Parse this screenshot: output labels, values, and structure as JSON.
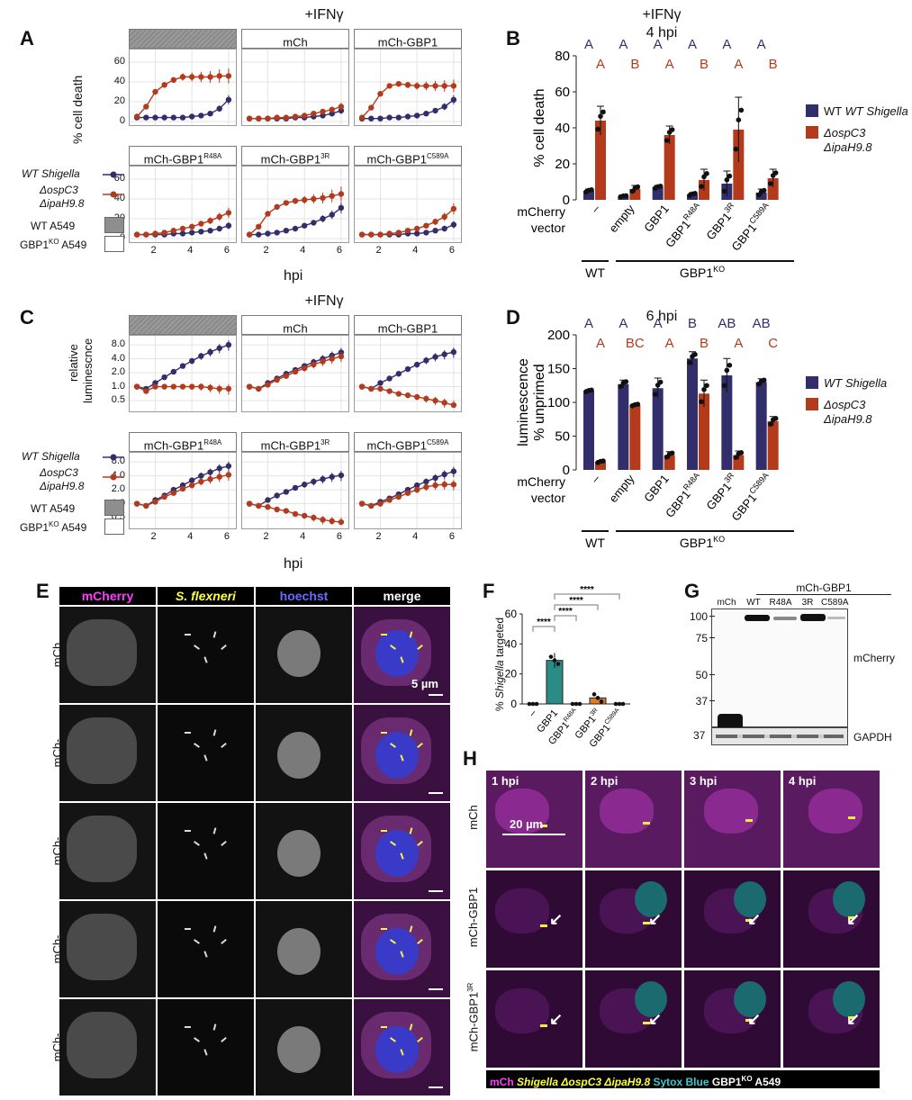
{
  "panels": {
    "A": "A",
    "B": "B",
    "C": "C",
    "D": "D",
    "E": "E",
    "F": "F",
    "G": "G",
    "H": "H"
  },
  "colors": {
    "wt": "#312e6b",
    "mut": "#b43a1c",
    "teal": "#2a8c84",
    "orange": "#e07a28"
  },
  "panelA": {
    "title": "+IFNγ",
    "facets": [
      "",
      "mCh",
      "mCh-GBP1",
      "mCh-GBP1R48A",
      "mCh-GBP13R",
      "mCh-GBP1C589A"
    ],
    "facet_main": [
      "",
      "mCh",
      "mCh-GBP1",
      "mCh-GBP1",
      "mCh-GBP1",
      "mCh-GBP1"
    ],
    "facet_sup": [
      "",
      "",
      "",
      "R48A",
      "3R",
      "C589A"
    ],
    "ylabel": "% cell death",
    "xlabel": "hpi",
    "yticks": [
      "0",
      "20",
      "40",
      "60"
    ],
    "xticks": [
      "2",
      "4",
      "6"
    ],
    "legend": {
      "wt": "WT Shigella",
      "mut1": "ΔospC3",
      "mut2": "ΔipaH9.8",
      "wtA549": "WT A549",
      "koA549_main": "GBP1",
      "koA549_sup": "KO",
      "koA549_rest": " A549"
    }
  },
  "panelC": {
    "title": "+IFNγ",
    "ylabel1": "relative",
    "ylabel2": "luminescnce",
    "xlabel": "hpi",
    "yticks": [
      "8.0",
      "4.0",
      "2.0",
      "1.0",
      "0.5"
    ],
    "xticks": [
      "2",
      "4",
      "6"
    ]
  },
  "panelB": {
    "title": "+IFNγ",
    "subtitle": "4 hpi",
    "ylabel": "% cell death",
    "yticks": [
      "0",
      "20",
      "40",
      "60",
      "80"
    ],
    "categories": [
      "–",
      "empty",
      "GBP1",
      "GBP1R48A",
      "GBP13R",
      "GBP1C589A"
    ],
    "cat_main": [
      "–",
      "empty",
      "GBP1",
      "GBP1",
      "GBP1",
      "GBP1"
    ],
    "cat_sup": [
      "",
      "",
      "",
      "R48A",
      "3R",
      "C589A"
    ],
    "letters_wt": [
      "A",
      "A",
      "A",
      "A",
      "A",
      "A"
    ],
    "letters_mut": [
      "A",
      "B",
      "A",
      "B",
      "A",
      "B"
    ],
    "row_label1": "mCherry",
    "row_label2": "vector",
    "group_wt": "WT",
    "group_ko_main": "GBP1",
    "group_ko_sup": "KO",
    "legend_wt": "WT Shigella",
    "legend_mut1": "ΔospC3",
    "legend_mut2": "ΔipaH9.8"
  },
  "panelD": {
    "title": "6 hpi",
    "ylabel1": "luminescence",
    "ylabel2": "% unprimed",
    "yticks": [
      "0",
      "50",
      "100",
      "150",
      "200"
    ],
    "letters_wt": [
      "A",
      "A",
      "A",
      "B",
      "AB",
      "AB"
    ],
    "letters_mut": [
      "A",
      "BC",
      "A",
      "B",
      "A",
      "C"
    ],
    "legend_wt": "WT Shigella",
    "legend_mut1": "ΔospC3",
    "legend_mut2": "ΔipaH9.8"
  },
  "chart_data": [
    {
      "type": "line",
      "panel": "A",
      "x": [
        1,
        1.5,
        2,
        2.5,
        3,
        3.5,
        4,
        4.5,
        5,
        5.5,
        6
      ],
      "ylim": [
        0,
        70
      ],
      "facets": [
        {
          "name": "WT A549",
          "series": [
            {
              "name": "WT Shigella",
              "values": [
                4,
                4,
                4,
                4,
                4,
                4,
                5,
                6,
                8,
                13,
                22
              ]
            },
            {
              "name": "ΔospC3 ΔipaH9.8",
              "values": [
                5,
                15,
                30,
                37,
                42,
                45,
                45,
                45,
                45,
                46,
                46
              ]
            }
          ]
        },
        {
          "name": "mCh",
          "series": [
            {
              "name": "WT Shigella",
              "values": [
                3,
                3,
                3,
                3,
                3,
                4,
                4,
                5,
                6,
                8,
                11
              ]
            },
            {
              "name": "ΔospC3 ΔipaH9.8",
              "values": [
                3,
                3,
                3,
                4,
                4,
                5,
                6,
                8,
                10,
                12,
                15
              ]
            }
          ]
        },
        {
          "name": "mCh-GBP1",
          "series": [
            {
              "name": "WT Shigella",
              "values": [
                3,
                3,
                3,
                4,
                4,
                5,
                6,
                8,
                11,
                15,
                22
              ]
            },
            {
              "name": "ΔospC3 ΔipaH9.8",
              "values": [
                4,
                14,
                28,
                36,
                38,
                37,
                36,
                36,
                36,
                36,
                36
              ]
            }
          ]
        },
        {
          "name": "mCh-GBP1R48A",
          "series": [
            {
              "name": "WT Shigella",
              "values": [
                4,
                4,
                4,
                4,
                5,
                5,
                6,
                7,
                8,
                10,
                13
              ]
            },
            {
              "name": "ΔospC3 ΔipaH9.8",
              "values": [
                4,
                4,
                5,
                6,
                8,
                10,
                12,
                15,
                18,
                22,
                26
              ]
            }
          ]
        },
        {
          "name": "mCh-GBP13R",
          "series": [
            {
              "name": "WT Shigella",
              "values": [
                4,
                4,
                5,
                6,
                8,
                10,
                13,
                16,
                20,
                24,
                31
              ]
            },
            {
              "name": "ΔospC3 ΔipaH9.8",
              "values": [
                4,
                12,
                25,
                32,
                36,
                38,
                39,
                40,
                41,
                43,
                45
              ]
            }
          ]
        },
        {
          "name": "mCh-GBP1C589A",
          "series": [
            {
              "name": "WT Shigella",
              "values": [
                4,
                4,
                4,
                4,
                4,
                5,
                5,
                6,
                8,
                10,
                14
              ]
            },
            {
              "name": "ΔospC3 ΔipaH9.8",
              "values": [
                4,
                4,
                4,
                5,
                6,
                8,
                10,
                13,
                17,
                22,
                30
              ]
            }
          ]
        }
      ]
    },
    {
      "type": "line",
      "panel": "C",
      "x": [
        1,
        1.5,
        2,
        2.5,
        3,
        3.5,
        4,
        4.5,
        5,
        5.5,
        6
      ],
      "ylim": [
        0.35,
        11
      ],
      "yscale": "log",
      "facets": [
        {
          "name": "WT A549",
          "series": [
            {
              "name": "WT Shigella",
              "values": [
                1.0,
                0.9,
                1.2,
                1.6,
                2.1,
                2.8,
                3.6,
                4.6,
                5.6,
                6.8,
                8.0
              ]
            },
            {
              "name": "ΔospC3 ΔipaH9.8",
              "values": [
                1.0,
                0.8,
                1.0,
                1.0,
                1.0,
                1.0,
                1.0,
                1.0,
                0.95,
                0.9,
                0.9
              ]
            }
          ]
        },
        {
          "name": "mCh",
          "series": [
            {
              "name": "WT Shigella",
              "values": [
                1.0,
                0.9,
                1.2,
                1.5,
                1.9,
                2.3,
                2.8,
                3.4,
                4.0,
                4.7,
                5.5
              ]
            },
            {
              "name": "ΔospC3 ΔipaH9.8",
              "values": [
                1.0,
                0.9,
                1.1,
                1.4,
                1.7,
                2.1,
                2.5,
                3.0,
                3.5,
                4.0,
                4.5
              ]
            }
          ]
        },
        {
          "name": "mCh-GBP1",
          "series": [
            {
              "name": "WT Shigella",
              "values": [
                1.0,
                0.9,
                1.2,
                1.5,
                1.9,
                2.4,
                3.0,
                3.7,
                4.4,
                5.0,
                5.6
              ]
            },
            {
              "name": "ΔospC3 ΔipaH9.8",
              "values": [
                1.0,
                0.9,
                0.9,
                0.8,
                0.7,
                0.65,
                0.6,
                0.55,
                0.5,
                0.45,
                0.4
              ]
            }
          ]
        },
        {
          "name": "mCh-GBP1R48A",
          "series": [
            {
              "name": "WT Shigella",
              "values": [
                1.0,
                0.9,
                1.2,
                1.5,
                2.0,
                2.5,
                3.2,
                4.0,
                4.8,
                5.8,
                6.5
              ]
            },
            {
              "name": "ΔospC3 ΔipaH9.8",
              "values": [
                1.0,
                0.9,
                1.1,
                1.4,
                1.7,
                2.1,
                2.5,
                3.0,
                3.4,
                3.8,
                4.2
              ]
            }
          ]
        },
        {
          "name": "mCh-GBP13R",
          "series": [
            {
              "name": "WT Shigella",
              "values": [
                1.0,
                0.9,
                1.2,
                1.5,
                1.8,
                2.2,
                2.6,
                3.0,
                3.4,
                3.8,
                4.1
              ]
            },
            {
              "name": "ΔospC3 ΔipaH9.8",
              "values": [
                1.0,
                0.9,
                0.85,
                0.75,
                0.7,
                0.6,
                0.55,
                0.5,
                0.45,
                0.42,
                0.4
              ]
            }
          ]
        },
        {
          "name": "mCh-GBP1C589A",
          "series": [
            {
              "name": "WT Shigella",
              "values": [
                1.0,
                0.9,
                1.1,
                1.3,
                1.6,
                2.0,
                2.5,
                3.0,
                3.6,
                4.3,
                5.0
              ]
            },
            {
              "name": "ΔospC3 ΔipaH9.8",
              "values": [
                1.0,
                0.9,
                1.0,
                1.2,
                1.4,
                1.7,
                2.0,
                2.3,
                2.5,
                2.6,
                2.6
              ]
            }
          ]
        }
      ]
    },
    {
      "type": "bar",
      "panel": "B",
      "categories": [
        "–",
        "empty",
        "GBP1",
        "GBP1R48A",
        "GBP13R",
        "GBP1C589A"
      ],
      "ylabel": "% cell death",
      "ylim": [
        0,
        80
      ],
      "series": [
        {
          "name": "WT Shigella",
          "values": [
            5,
            2,
            7,
            3,
            9,
            4
          ],
          "err": [
            1,
            0.5,
            1,
            1,
            7,
            2
          ]
        },
        {
          "name": "ΔospC3 ΔipaH9.8",
          "values": [
            44,
            6,
            36,
            11,
            39,
            12
          ],
          "err": [
            8,
            2,
            5,
            6,
            18,
            5
          ]
        }
      ]
    },
    {
      "type": "bar",
      "panel": "D",
      "categories": [
        "–",
        "empty",
        "GBP1",
        "GBP1R48A",
        "GBP13R",
        "GBP1C589A"
      ],
      "ylabel": "luminescence % unprimed",
      "ylim": [
        0,
        200
      ],
      "series": [
        {
          "name": "WT Shigella",
          "values": [
            117,
            127,
            121,
            165,
            140,
            130
          ],
          "err": [
            2,
            6,
            15,
            10,
            25,
            5
          ]
        },
        {
          "name": "ΔospC3 ΔipaH9.8",
          "values": [
            12,
            96,
            22,
            113,
            22,
            72
          ],
          "err": [
            2,
            2,
            5,
            20,
            6,
            7
          ]
        }
      ]
    },
    {
      "type": "bar",
      "panel": "F",
      "categories": [
        "–",
        "GBP1",
        "GBP1R48A",
        "GBP13R",
        "GBP1C589A"
      ],
      "ylabel": "% Shigella targeted",
      "ylim": [
        0,
        60
      ],
      "series": [
        {
          "name": "% Shigella targeted",
          "values": [
            0,
            29,
            0,
            4,
            0
          ],
          "err": [
            0,
            5,
            0,
            1,
            0
          ]
        }
      ],
      "significance": [
        "****",
        "****",
        "****",
        "****"
      ]
    }
  ],
  "panelE": {
    "headers": [
      "mCherry",
      "S. flexneri",
      "hoechst",
      "merge"
    ],
    "header_colors": [
      "#ff3dff",
      "#ffff3d",
      "#6a6aff",
      "#ffffff"
    ],
    "rows_main": [
      "mCh",
      "mCh-GBP1",
      "mCh-GBP1",
      "mCh-GBP1",
      "mCh-GBP1"
    ],
    "rows_line1": [
      "mCh",
      "mCh-",
      "mCh-",
      "mCh-",
      "mCh-"
    ],
    "rows_line2": [
      "",
      "GBP1",
      "GBP1",
      "GBP1",
      "GBP1"
    ],
    "rows_sup": [
      "",
      "",
      "R48A",
      "3R",
      "C589A"
    ],
    "scale": "5 µm"
  },
  "panelF": {
    "ylabel_pre": "% ",
    "ylabel_it": "Shigella",
    "ylabel_post": " targeted",
    "yticks": [
      "0",
      "20",
      "40",
      "60"
    ],
    "xcats_main": [
      "–",
      "GBP1",
      "GBP1",
      "GBP1",
      "GBP1"
    ],
    "xcats_sup": [
      "",
      "",
      "R48A",
      "3R",
      "C589A"
    ],
    "sig": "****"
  },
  "panelG": {
    "group": "mCh-GBP1",
    "lanes": [
      "mCh",
      "WT",
      "R48A",
      "3R",
      "C589A"
    ],
    "markers": [
      "100",
      "75",
      "50",
      "37"
    ],
    "gapdh_marker": "37",
    "label_mcherry": "mCherry",
    "label_gapdh": "GAPDH"
  },
  "panelH": {
    "times": [
      "1 hpi",
      "2 hpi",
      "3 hpi",
      "4 hpi"
    ],
    "rows_main": [
      "mCh",
      "mCh-GBP1",
      "mCh-GBP1"
    ],
    "rows_sup": [
      "",
      "",
      "3R"
    ],
    "scale": "20 µm",
    "caption": {
      "mch": "mCh",
      "shig": "Shigella ΔospC3 ΔipaH9.8",
      "sytox": "Sytox Blue",
      "ko_main": "GBP1",
      "ko_sup": "KO",
      "ko_rest": " A549"
    }
  }
}
